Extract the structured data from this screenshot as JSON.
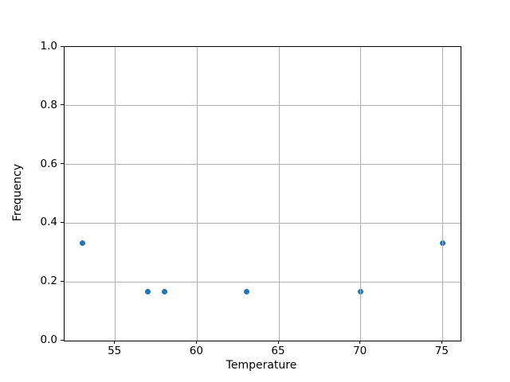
{
  "chart_data": {
    "type": "scatter",
    "title": "",
    "xlabel": "Temperature",
    "ylabel": "Frequency",
    "points": [
      {
        "x": 53,
        "y": 0.3333
      },
      {
        "x": 57,
        "y": 0.1667
      },
      {
        "x": 58,
        "y": 0.1667
      },
      {
        "x": 63,
        "y": 0.1667
      },
      {
        "x": 70,
        "y": 0.1667
      },
      {
        "x": 75,
        "y": 0.3333
      }
    ],
    "xlim": [
      51.9,
      76.1
    ],
    "ylim": [
      0.0,
      1.0
    ],
    "xticks": [
      55,
      60,
      65,
      70,
      75
    ],
    "xtick_labels": [
      "55",
      "60",
      "65",
      "70",
      "75"
    ],
    "yticks": [
      0.0,
      0.2,
      0.4,
      0.6,
      0.8,
      1.0
    ],
    "ytick_labels": [
      "0.0",
      "0.2",
      "0.4",
      "0.6",
      "0.8",
      "1.0"
    ],
    "grid": true,
    "legend": null,
    "marker_color": "#1f77b4",
    "grid_color": "#b0b0b0",
    "spine_color": "#000000",
    "background_color": "#ffffff"
  }
}
